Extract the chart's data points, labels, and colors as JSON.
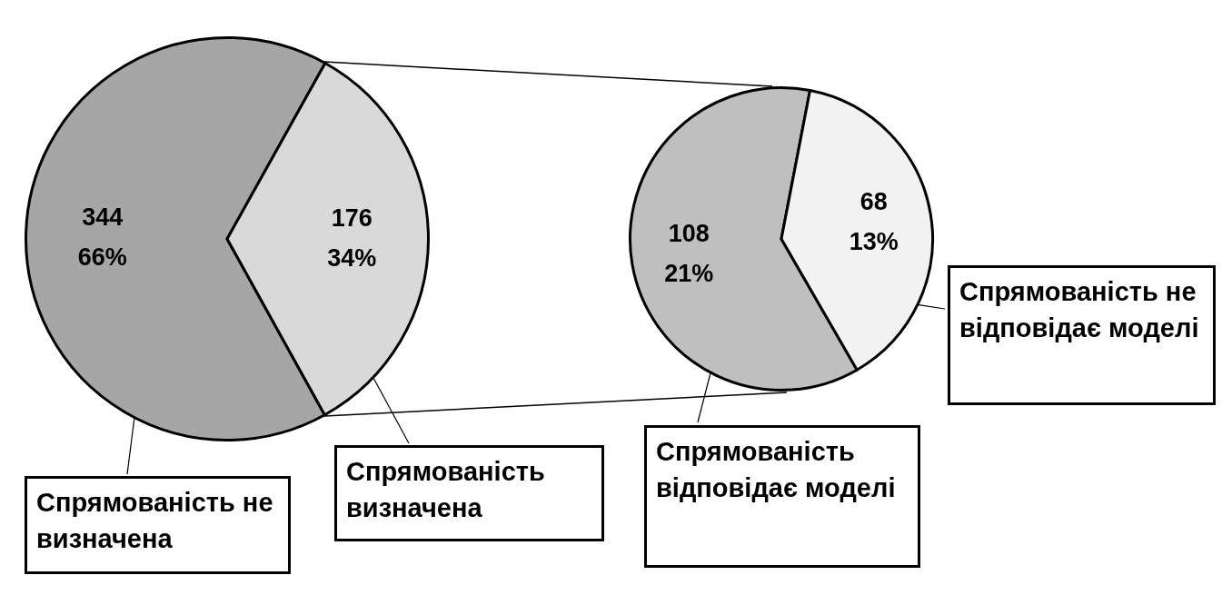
{
  "chart_data": [
    {
      "type": "pie",
      "categories": [
        "Спрямованість не визначена",
        "Спрямованість визначена"
      ],
      "values": [
        344,
        176
      ],
      "colors": [
        "#a6a6a6",
        "#d9d9d9"
      ],
      "value_labels": [
        "344\n66%",
        "176\n34%"
      ],
      "legend": false
    },
    {
      "type": "pie",
      "categories": [
        "Спрямованість відповідає моделі",
        "Спрямованість не відповідає моделі"
      ],
      "values": [
        108,
        68
      ],
      "colors": [
        "#bfbfbf",
        "#f2f2f2"
      ],
      "value_labels": [
        "108\n21%",
        "68\n13%"
      ],
      "legend": false
    }
  ]
}
